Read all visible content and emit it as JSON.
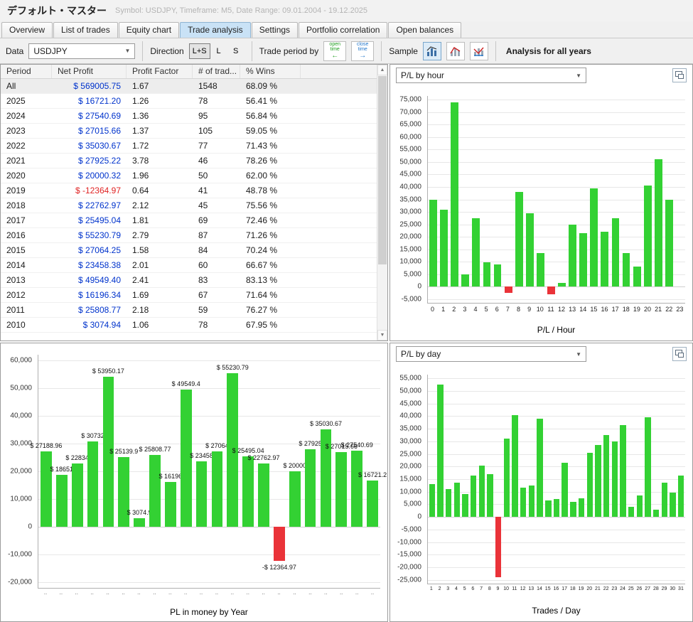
{
  "window": {
    "title": "デフォルト・マスター",
    "subtitle": "Symbol: USDJPY, Timeframe: M5, Date Range: 09.01.2004 - 19.12.2025"
  },
  "tabs": [
    {
      "label": "Overview",
      "active": false
    },
    {
      "label": "List of trades",
      "active": false
    },
    {
      "label": "Equity chart",
      "active": false
    },
    {
      "label": "Trade analysis",
      "active": true
    },
    {
      "label": "Settings",
      "active": false
    },
    {
      "label": "Portfolio correlation",
      "active": false
    },
    {
      "label": "Open balances",
      "active": false
    }
  ],
  "toolbar": {
    "data_label": "Data",
    "data_value": "USDJPY",
    "direction_label": "Direction",
    "direction_options": [
      "L+S",
      "L",
      "S"
    ],
    "direction_active": "L+S",
    "trade_period_label": "Trade period by",
    "open_time_line1": "open",
    "open_time_line2": "time",
    "close_time_line1": "close",
    "close_time_line2": "time",
    "sample_label": "Sample",
    "analysis_label": "Analysis for all years"
  },
  "icons": {
    "chevron_down": "▼",
    "scroll_up": "▲",
    "scroll_down": "▼",
    "open_time_arrow": "←",
    "close_time_arrow": "→"
  },
  "table": {
    "columns": [
      "Period",
      "Net Profit",
      "Profit Factor",
      "# of trad...",
      "% Wins"
    ],
    "rows": [
      {
        "period": "All",
        "net_profit": "$ 569005.75",
        "profit_factor": "1.67",
        "trades": "1548",
        "wins": "68.09 %",
        "negative": false
      },
      {
        "period": "2025",
        "net_profit": "$ 16721.20",
        "profit_factor": "1.26",
        "trades": "78",
        "wins": "56.41 %",
        "negative": false
      },
      {
        "period": "2024",
        "net_profit": "$ 27540.69",
        "profit_factor": "1.36",
        "trades": "95",
        "wins": "56.84 %",
        "negative": false
      },
      {
        "period": "2023",
        "net_profit": "$ 27015.66",
        "profit_factor": "1.37",
        "trades": "105",
        "wins": "59.05 %",
        "negative": false
      },
      {
        "period": "2022",
        "net_profit": "$ 35030.67",
        "profit_factor": "1.72",
        "trades": "77",
        "wins": "71.43 %",
        "negative": false
      },
      {
        "period": "2021",
        "net_profit": "$ 27925.22",
        "profit_factor": "3.78",
        "trades": "46",
        "wins": "78.26 %",
        "negative": false
      },
      {
        "period": "2020",
        "net_profit": "$ 20000.32",
        "profit_factor": "1.96",
        "trades": "50",
        "wins": "62.00 %",
        "negative": false
      },
      {
        "period": "2019",
        "net_profit": "$ -12364.97",
        "profit_factor": "0.64",
        "trades": "41",
        "wins": "48.78 %",
        "negative": true
      },
      {
        "period": "2018",
        "net_profit": "$ 22762.97",
        "profit_factor": "2.12",
        "trades": "45",
        "wins": "75.56 %",
        "negative": false
      },
      {
        "period": "2017",
        "net_profit": "$ 25495.04",
        "profit_factor": "1.81",
        "trades": "69",
        "wins": "72.46 %",
        "negative": false
      },
      {
        "period": "2016",
        "net_profit": "$ 55230.79",
        "profit_factor": "2.79",
        "trades": "87",
        "wins": "71.26 %",
        "negative": false
      },
      {
        "period": "2015",
        "net_profit": "$ 27064.25",
        "profit_factor": "1.58",
        "trades": "84",
        "wins": "70.24 %",
        "negative": false
      },
      {
        "period": "2014",
        "net_profit": "$ 23458.38",
        "profit_factor": "2.01",
        "trades": "60",
        "wins": "66.67 %",
        "negative": false
      },
      {
        "period": "2013",
        "net_profit": "$ 49549.40",
        "profit_factor": "2.41",
        "trades": "83",
        "wins": "83.13 %",
        "negative": false
      },
      {
        "period": "2012",
        "net_profit": "$ 16196.34",
        "profit_factor": "1.69",
        "trades": "67",
        "wins": "71.64 %",
        "negative": false
      },
      {
        "period": "2011",
        "net_profit": "$ 25808.77",
        "profit_factor": "2.18",
        "trades": "59",
        "wins": "76.27 %",
        "negative": false
      },
      {
        "period": "2010",
        "net_profit": "$ 3074.94",
        "profit_factor": "1.06",
        "trades": "78",
        "wins": "67.95 %",
        "negative": false
      }
    ]
  },
  "chart_data": [
    {
      "id": "hour_chart",
      "type": "bar",
      "selector_value": "P/L by hour",
      "xlabel": "P/L / Hour",
      "categories": [
        "0",
        "1",
        "2",
        "3",
        "4",
        "5",
        "6",
        "7",
        "8",
        "9",
        "10",
        "11",
        "12",
        "13",
        "14",
        "15",
        "16",
        "17",
        "18",
        "19",
        "20",
        "21",
        "22",
        "23"
      ],
      "values": [
        35000,
        31000,
        74000,
        5000,
        27500,
        9800,
        9000,
        -2500,
        38000,
        29500,
        13500,
        -3000,
        1500,
        25000,
        21500,
        39500,
        22000,
        27500,
        13500,
        8000,
        40500,
        51000,
        35000,
        0
      ],
      "ylim": [
        -6500,
        76500
      ],
      "yticks": [
        75000,
        70000,
        65000,
        60000,
        55000,
        50000,
        45000,
        40000,
        35000,
        30000,
        25000,
        20000,
        15000,
        10000,
        5000,
        0,
        -5000
      ],
      "grid": true,
      "positive_color": "#33d133",
      "negative_color": "#ea3339"
    },
    {
      "id": "year_chart",
      "type": "bar",
      "xlabel": "PL in money by Year",
      "x_ticks": [
        "..",
        "..",
        "..",
        "..",
        "..",
        "..",
        "..",
        "..",
        "..",
        "..",
        "..",
        "..",
        "..",
        "..",
        "..",
        "..",
        "..",
        "..",
        "..",
        "..",
        "..",
        ".."
      ],
      "values": [
        27188.96,
        18651,
        22834,
        30732,
        53950.17,
        25139.9,
        3074.9,
        25808.77,
        16196,
        49549.4,
        23458,
        27064,
        55230.79,
        25495.04,
        22762.97,
        -12364.97,
        20000,
        27925,
        35030.67,
        27015.66,
        27540.69,
        16721.2
      ],
      "bar_labels": [
        "$ 27188.96",
        "$ 18651",
        "$ 22834",
        "$ 30732",
        "$ 53950.17",
        "$ 25139.9",
        "$ 3074.9",
        "$ 25808.77",
        "$ 16196",
        "$ 49549.4",
        "$ 23458",
        "$ 27064",
        "$ 55230.79",
        "$ 25495.04",
        "$ 22762.97",
        "-$ 12364.97",
        "$ 20000",
        "$ 27925",
        "$ 35030.67",
        "$ 27015.66",
        "$ 27540.69",
        "$ 16721.2"
      ],
      "ylim": [
        -22000,
        62000
      ],
      "yticks": [
        60000,
        50000,
        40000,
        30000,
        20000,
        10000,
        0,
        -10000,
        -20000
      ],
      "grid": true,
      "positive_color": "#33d133",
      "negative_color": "#ea3339"
    },
    {
      "id": "day_chart",
      "type": "bar",
      "selector_value": "P/L by day",
      "xlabel": "Trades / Day",
      "categories": [
        "1",
        "2",
        "3",
        "4",
        "5",
        "6",
        "7",
        "8",
        "9",
        "10",
        "11",
        "12",
        "13",
        "14",
        "15",
        "16",
        "17",
        "18",
        "19",
        "20",
        "21",
        "22",
        "23",
        "24",
        "25",
        "26",
        "27",
        "28",
        "29",
        "30",
        "31"
      ],
      "values": [
        13000,
        52500,
        11000,
        13500,
        9000,
        16500,
        20500,
        17000,
        -24000,
        31000,
        40500,
        11500,
        12500,
        39000,
        6500,
        7000,
        21500,
        6000,
        7500,
        25500,
        28500,
        32500,
        30000,
        36500,
        4000,
        8500,
        39500,
        3000,
        13500,
        9500,
        16500
      ],
      "ylim": [
        -26500,
        56500
      ],
      "yticks": [
        55000,
        50000,
        45000,
        40000,
        35000,
        30000,
        25000,
        20000,
        15000,
        10000,
        5000,
        0,
        -5000,
        -10000,
        -15000,
        -20000,
        -25000
      ],
      "grid": true,
      "positive_color": "#33d133",
      "negative_color": "#ea3339"
    }
  ]
}
